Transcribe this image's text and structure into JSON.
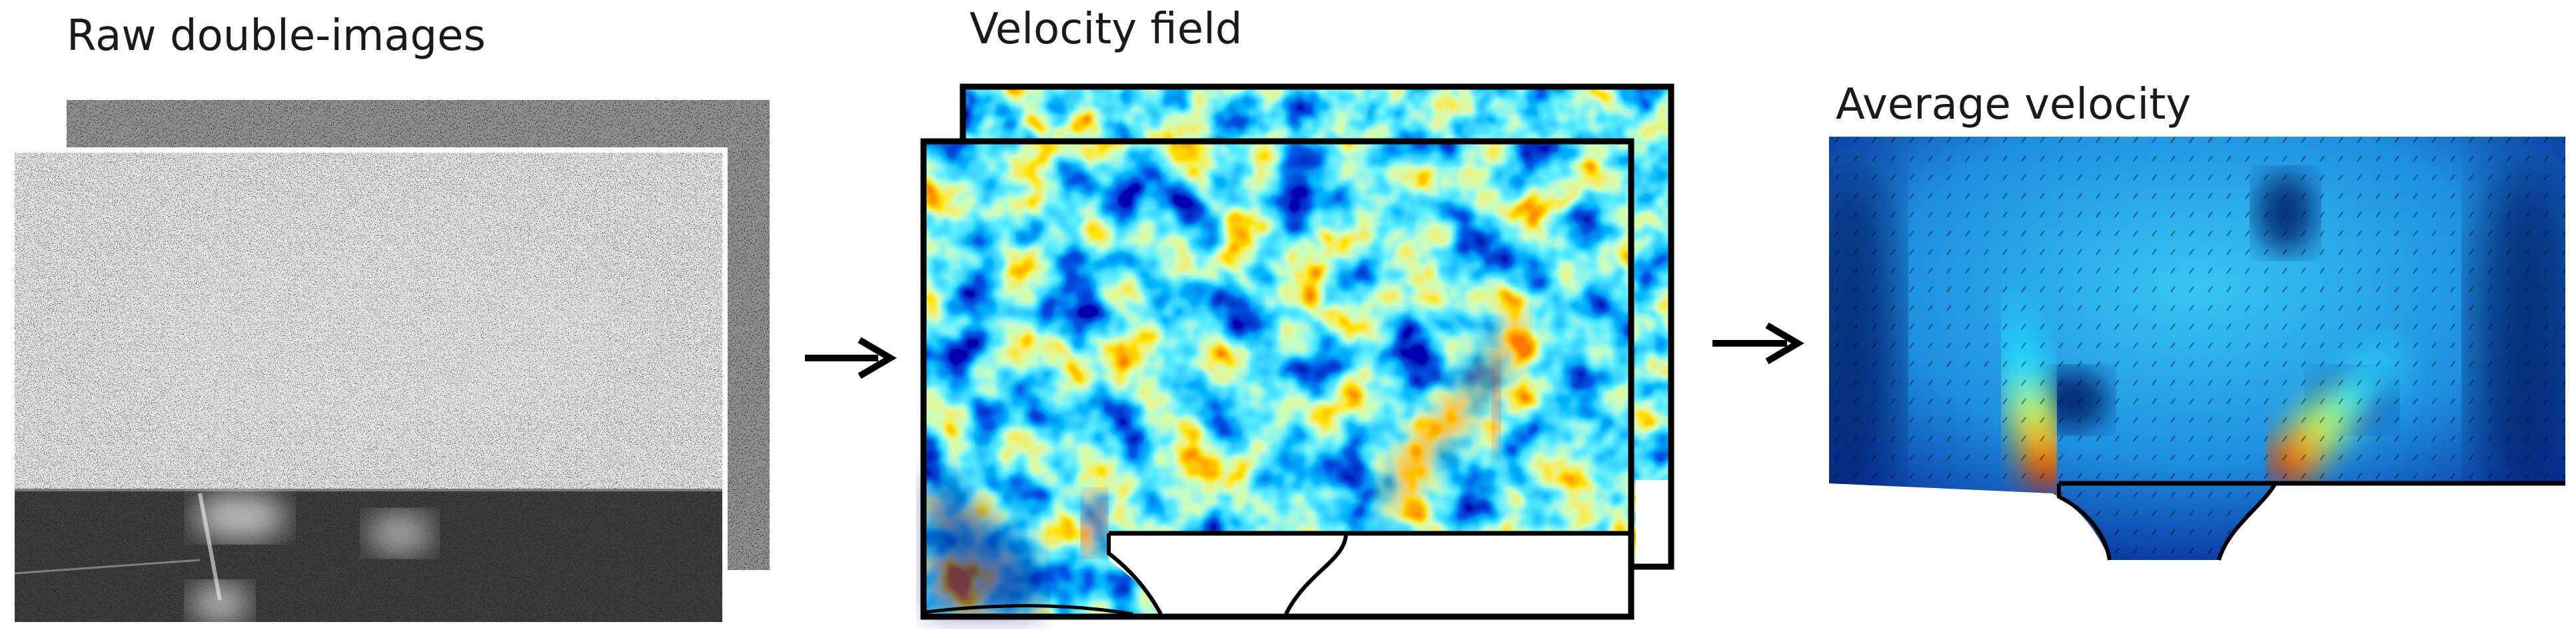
{
  "panels": {
    "raw": {
      "label": "Raw double-images"
    },
    "velocity": {
      "label": "Velocity field"
    },
    "average": {
      "label": "Average velocity"
    }
  },
  "flow_arrows": [
    {
      "from": "raw",
      "to": "velocity"
    },
    {
      "from": "velocity",
      "to": "average"
    }
  ],
  "colors": {
    "raw_background": "#0d0d0d",
    "jet_colormap": [
      "#00007f",
      "#0030c0",
      "#0080ff",
      "#10d0ff",
      "#80ff80",
      "#ffd000",
      "#ff3000"
    ],
    "frame": "#000000"
  }
}
